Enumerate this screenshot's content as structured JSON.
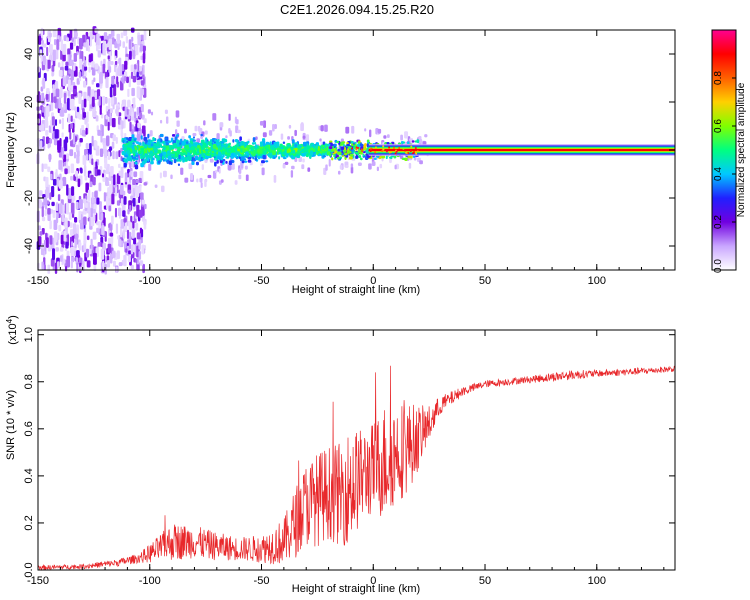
{
  "title": "C2E1.2026.094.15.25.R20",
  "chart_data": [
    {
      "type": "heatmap",
      "xlabel": "Height of straight line (km)",
      "ylabel": "Frequency (Hz)",
      "xlim": [
        -150,
        135
      ],
      "ylim": [
        -50,
        50
      ],
      "x_ticks": [
        -150,
        -100,
        -50,
        0,
        50,
        100
      ],
      "y_ticks": [
        -40,
        -20,
        0,
        20,
        40
      ],
      "colorbar": {
        "label": "Normalized spectral amplitude",
        "range": [
          0,
          1
        ],
        "ticks": [
          "0.0",
          "0.2",
          "0.4",
          "0.6",
          "0.8"
        ],
        "tick_values": [
          0,
          0.2,
          0.4,
          0.6,
          0.8
        ],
        "colors": [
          "#ffffff",
          "#c9a6ff",
          "#7000e0",
          "#2020ff",
          "#00c8ff",
          "#00ff80",
          "#80ff00",
          "#ffd000",
          "#ff6000",
          "#ff0000",
          "#ff0090"
        ]
      },
      "regions": [
        {
          "name": "noise",
          "x": [
            -150,
            -102
          ],
          "freq_spread": 50,
          "amplitude": 0.2
        },
        {
          "name": "spreading",
          "x": [
            -112,
            -20
          ],
          "freq_spread": 9,
          "amplitude": 0.35
        },
        {
          "name": "transition",
          "x": [
            -20,
            20
          ],
          "freq_spread": 4,
          "amplitude": 0.6
        },
        {
          "name": "tone",
          "x": [
            20,
            135
          ],
          "freq_center": 0,
          "amplitude": 0.95
        }
      ]
    },
    {
      "type": "line",
      "xlabel": "Height of straight line (km)",
      "ylabel": "SNR (10 * v/v)",
      "y_multiplier_label": "(x10",
      "y_multiplier_exp": "4",
      "xlim": [
        -150,
        135
      ],
      "ylim": [
        0,
        1.02
      ],
      "x_ticks": [
        -150,
        -100,
        -50,
        0,
        50,
        100
      ],
      "y_ticks": [
        "0.0",
        "0.2",
        "0.4",
        "0.6",
        "0.8",
        "1.0"
      ],
      "y_tick_values": [
        0,
        0.2,
        0.4,
        0.6,
        0.8,
        1.0
      ],
      "series": [
        {
          "name": "SNR",
          "color": "#e8282b",
          "x": [
            -150,
            -130,
            -115,
            -105,
            -100,
            -90,
            -80,
            -70,
            -60,
            -50,
            -40,
            -35,
            -30,
            -25,
            -20,
            -15,
            -10,
            -5,
            0,
            5,
            10,
            15,
            20,
            25,
            30,
            40,
            50,
            60,
            70,
            80,
            90,
            100,
            110,
            120,
            135
          ],
          "mean": [
            0.01,
            0.015,
            0.03,
            0.05,
            0.07,
            0.12,
            0.12,
            0.1,
            0.09,
            0.09,
            0.12,
            0.2,
            0.28,
            0.3,
            0.33,
            0.32,
            0.36,
            0.4,
            0.43,
            0.46,
            0.5,
            0.52,
            0.56,
            0.62,
            0.7,
            0.76,
            0.79,
            0.8,
            0.81,
            0.82,
            0.83,
            0.835,
            0.84,
            0.845,
            0.855
          ],
          "amp": [
            0.01,
            0.01,
            0.015,
            0.02,
            0.04,
            0.08,
            0.07,
            0.06,
            0.05,
            0.06,
            0.1,
            0.15,
            0.18,
            0.2,
            0.2,
            0.22,
            0.25,
            0.2,
            0.2,
            0.25,
            0.22,
            0.2,
            0.14,
            0.08,
            0.04,
            0.02,
            0.015,
            0.015,
            0.015,
            0.02,
            0.02,
            0.015,
            0.015,
            0.015,
            0.012
          ]
        }
      ]
    }
  ]
}
